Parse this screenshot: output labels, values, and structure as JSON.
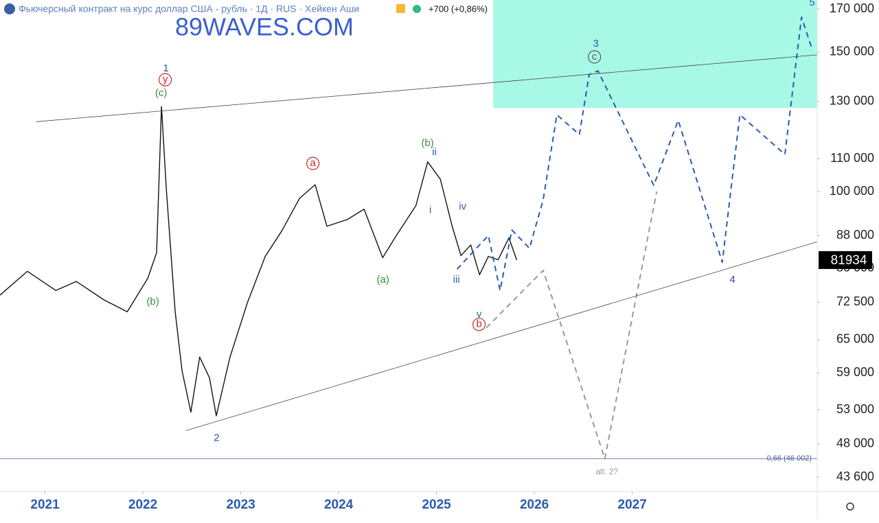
{
  "chart_data": {
    "type": "line",
    "title": "Фьючерсный контракт на курс доллар США - рубль · 1Д · RUS · Хейкен Аши",
    "change": "+700 (+0,86%)",
    "watermark": "89WAVES.COM",
    "log_scale": true,
    "xlim": [
      2020.54,
      2028.89
    ],
    "xticks": [
      2021,
      2022,
      2023,
      2024,
      2025,
      2026,
      2027
    ],
    "ylim": [
      41900,
      174500
    ],
    "yticks": [
      {
        "value": 170000,
        "label": "170 000"
      },
      {
        "value": 150000,
        "label": "150 000"
      },
      {
        "value": 130000,
        "label": "130 000"
      },
      {
        "value": 110000,
        "label": "110 000"
      },
      {
        "value": 100000,
        "label": "100 000"
      },
      {
        "value": 88000,
        "label": "88 000"
      },
      {
        "value": 80000,
        "label": "80 000"
      },
      {
        "value": 72500,
        "label": "72 500"
      },
      {
        "value": 65000,
        "label": "65 000"
      },
      {
        "value": 59000,
        "label": "59 000"
      },
      {
        "value": 53000,
        "label": "53 000"
      },
      {
        "value": 48000,
        "label": "48 000"
      },
      {
        "value": 43600,
        "label": "43 600"
      }
    ],
    "last_price": 81934,
    "fib_level": {
      "value": 46002,
      "label": "0,66 (46 002)"
    },
    "target_zone": {
      "x": [
        2025.58,
        2028.89
      ],
      "y": [
        127500,
        174500
      ],
      "color": "#a8f8e6"
    },
    "series": [
      {
        "color": "#111111",
        "style": "solid",
        "width": 1.4,
        "x": [
          2020.54,
          2020.82,
          2021.11,
          2021.32,
          2021.6,
          2021.84,
          2022.05,
          2022.14,
          2022.19,
          2022.24,
          2022.33,
          2022.4,
          2022.49,
          2022.58,
          2022.68,
          2022.75,
          2022.89,
          2023.07,
          2023.25,
          2023.42,
          2023.6,
          2023.76,
          2023.88,
          2024.09,
          2024.26,
          2024.45,
          2024.58,
          2024.79,
          2024.91,
          2025.04,
          2025.16,
          2025.25,
          2025.35,
          2025.44,
          2025.53,
          2025.63,
          2025.74,
          2025.82
        ],
        "values": [
          74000,
          79300,
          75000,
          77000,
          73000,
          70500,
          77700,
          83700,
          128000,
          100500,
          70500,
          59400,
          52650,
          61800,
          58200,
          52100,
          61800,
          72500,
          82800,
          89200,
          98000,
          102000,
          90400,
          92200,
          95000,
          82500,
          87600,
          96000,
          109000,
          103600,
          90400,
          83000,
          85600,
          78500,
          82800,
          82000,
          87400,
          81934
        ]
      },
      {
        "color": "#2a5bb0",
        "style": "dashed",
        "width": 2,
        "x": [
          2025.21,
          2025.53,
          2025.65,
          2025.77,
          2025.95,
          2026.09,
          2026.23,
          2026.46,
          2026.56,
          2026.65,
          2027.22,
          2027.47,
          2027.92,
          2028.1,
          2028.56,
          2028.73,
          2028.84
        ],
        "values": [
          79800,
          88000,
          75000,
          89400,
          84800,
          97600,
          125000,
          118000,
          140500,
          142000,
          101800,
          123000,
          81400,
          125000,
          111400,
          166000,
          151000
        ]
      },
      {
        "color": "#999999",
        "style": "dashed",
        "width": 2,
        "x": [
          2025.51,
          2026.09,
          2026.72,
          2027.25
        ],
        "values": [
          67300,
          79500,
          46000,
          100000
        ]
      },
      {
        "color": "#444444",
        "style": "solid",
        "width": 0.8,
        "x": [
          2020.91,
          2028.89
        ],
        "values": [
          122500,
          148800
        ]
      },
      {
        "color": "#444444",
        "style": "solid",
        "width": 0.8,
        "x": [
          2022.44,
          2028.89
        ],
        "values": [
          49900,
          86400
        ]
      }
    ],
    "annotations": [
      {
        "text": "1",
        "x": 2022.235,
        "y": 142900,
        "color": "#2a4f9e"
      },
      {
        "text": "y",
        "x": 2022.228,
        "y": 138400,
        "color": "#c62828",
        "circled": true
      },
      {
        "text": "(c)",
        "x": 2022.186,
        "y": 133000,
        "color": "#388e3c"
      },
      {
        "text": "(b)",
        "x": 2022.102,
        "y": 72500,
        "color": "#388e3c"
      },
      {
        "text": "2",
        "x": 2022.754,
        "y": 48800,
        "color": "#2a4f9e"
      },
      {
        "text": "a",
        "x": 2023.737,
        "y": 108500,
        "color": "#c62828",
        "circled": true
      },
      {
        "text": "(a)",
        "x": 2024.453,
        "y": 77270,
        "color": "#388e3c"
      },
      {
        "text": "(b)",
        "x": 2024.909,
        "y": 114970,
        "color": "#388e3c"
      },
      {
        "text": "ii",
        "x": 2024.979,
        "y": 112000,
        "color": "#2a5bb0"
      },
      {
        "text": "i",
        "x": 2024.937,
        "y": 94700,
        "color": "#2a5bb0"
      },
      {
        "text": "iv",
        "x": 2025.267,
        "y": 95650,
        "color": "#2a5bb0"
      },
      {
        "text": "iii",
        "x": 2025.204,
        "y": 77270,
        "color": "#2a5bb0"
      },
      {
        "text": "v",
        "x": 2025.435,
        "y": 69900,
        "color": "#2a5bb0"
      },
      {
        "text": "b",
        "x": 2025.435,
        "y": 67950,
        "color": "#c62828",
        "circled": true
      },
      {
        "text": "3",
        "x": 2026.628,
        "y": 153600,
        "color": "#2a5bb0"
      },
      {
        "text": "c",
        "x": 2026.614,
        "y": 147900,
        "color": "#555555",
        "circled": true
      },
      {
        "text": "4",
        "x": 2028.025,
        "y": 77270,
        "color": "#2a4f9e"
      },
      {
        "text": "5",
        "x": 2028.839,
        "y": 173100,
        "color": "#2a5bb0"
      },
      {
        "text": "alt: 2?",
        "x": 2026.74,
        "y": 44220,
        "color": "#999999"
      }
    ]
  }
}
